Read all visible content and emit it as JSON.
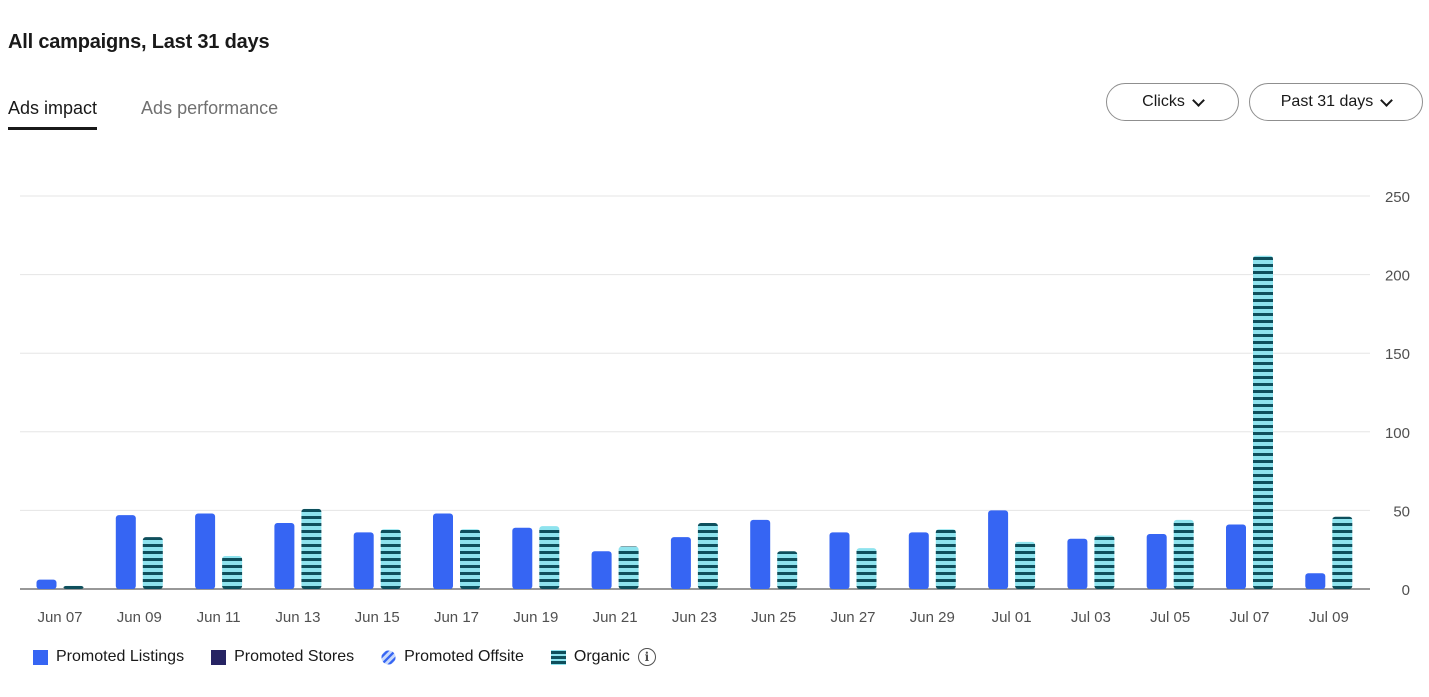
{
  "header": {
    "title": "All campaigns, Last 31 days"
  },
  "tabs": [
    {
      "label": "Ads impact",
      "active": true
    },
    {
      "label": "Ads performance",
      "active": false
    }
  ],
  "controls": {
    "metric_label": "Clicks",
    "range_label": "Past 31 days"
  },
  "colors": {
    "promoted_listings": "#3665f3",
    "promoted_stores": "#262363",
    "promoted_offsite": "#7aa2f5",
    "organic_fill": "#8ee3ee",
    "organic_stripe": "#0e4f5c"
  },
  "legend": {
    "items": [
      {
        "label": "Promoted Listings",
        "icon": "solid-blue-square"
      },
      {
        "label": "Promoted Stores",
        "icon": "solid-navy-square"
      },
      {
        "label": "Promoted Offsite",
        "icon": "diagonal-striped-circle"
      },
      {
        "label": "Organic",
        "icon": "horizontal-striped-square"
      }
    ],
    "info_icon": "info-icon"
  },
  "chart_data": {
    "type": "bar",
    "x_tick_labels": [
      "Jun 07",
      "Jun 09",
      "Jun 11",
      "Jun 13",
      "Jun 15",
      "Jun 17",
      "Jun 19",
      "Jun 21",
      "Jun 23",
      "Jun 25",
      "Jun 27",
      "Jun 29",
      "Jul 01",
      "Jul 03",
      "Jul 05",
      "Jul 07",
      "Jul 09"
    ],
    "y_ticks": [
      0,
      50,
      100,
      150,
      200,
      250
    ],
    "ylim": [
      0,
      250
    ],
    "y_axis_side": "right",
    "grid": true,
    "series": [
      {
        "name": "Promoted Listings",
        "values": [
          6,
          47,
          48,
          42,
          36,
          48,
          39,
          24,
          33,
          44,
          36,
          36,
          50,
          32,
          35,
          41,
          10
        ]
      },
      {
        "name": "Promoted Stores",
        "values": [
          0,
          0,
          0,
          0,
          0,
          0,
          0,
          0,
          0,
          0,
          0,
          0,
          0,
          0,
          0,
          0,
          0
        ]
      },
      {
        "name": "Promoted Offsite",
        "values": [
          0,
          0,
          0,
          0,
          0,
          0,
          0,
          0,
          0,
          0,
          0,
          0,
          0,
          0,
          0,
          0,
          0
        ]
      },
      {
        "name": "Organic",
        "values": [
          2,
          33,
          21,
          51,
          38,
          38,
          40,
          27,
          42,
          24,
          26,
          38,
          30,
          34,
          44,
          212,
          46
        ]
      }
    ]
  }
}
